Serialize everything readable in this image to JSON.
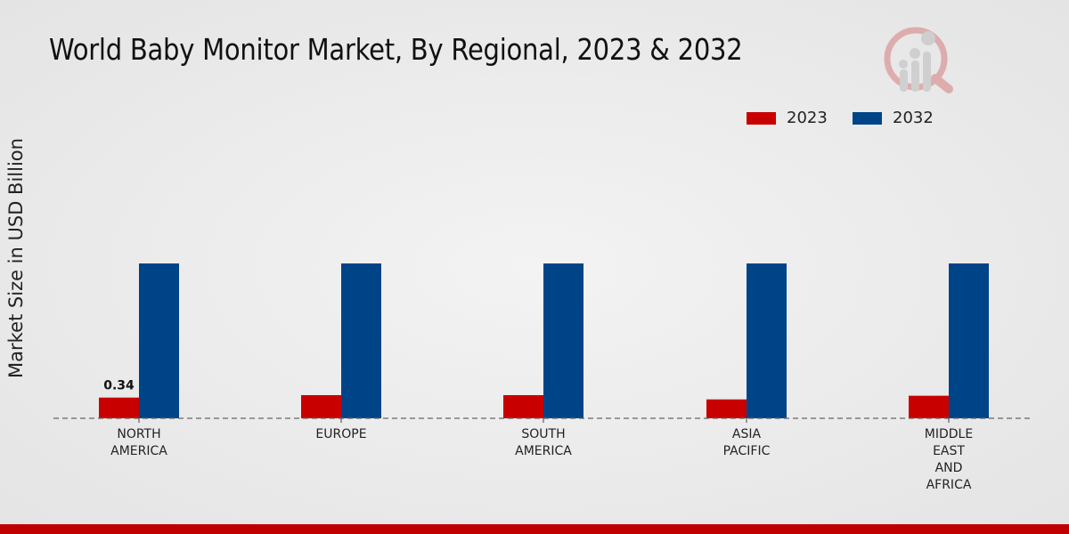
{
  "title": "World Baby Monitor Market, By Regional, 2023 & 2032",
  "chart_data": {
    "type": "bar",
    "title": "World Baby Monitor Market, By Regional, 2023 & 2032",
    "xlabel": "",
    "ylabel": "Market Size in USD Billion",
    "categories": [
      [
        "NORTH",
        "AMERICA"
      ],
      [
        "EUROPE"
      ],
      [
        "SOUTH",
        "AMERICA"
      ],
      [
        "ASIA",
        "PACIFIC"
      ],
      [
        "MIDDLE",
        "EAST",
        "AND",
        "AFRICA"
      ]
    ],
    "series": [
      {
        "name": "2023",
        "color": "#c80000",
        "values": [
          0.34,
          0.38,
          0.38,
          0.31,
          0.37
        ]
      },
      {
        "name": "2032",
        "color": "#004488",
        "values": [
          2.54,
          2.54,
          2.54,
          2.54,
          2.54
        ]
      }
    ],
    "data_labels": [
      {
        "series": 0,
        "index": 0,
        "text": "0.34"
      }
    ],
    "legend_position": "top-right",
    "grid": false
  }
}
